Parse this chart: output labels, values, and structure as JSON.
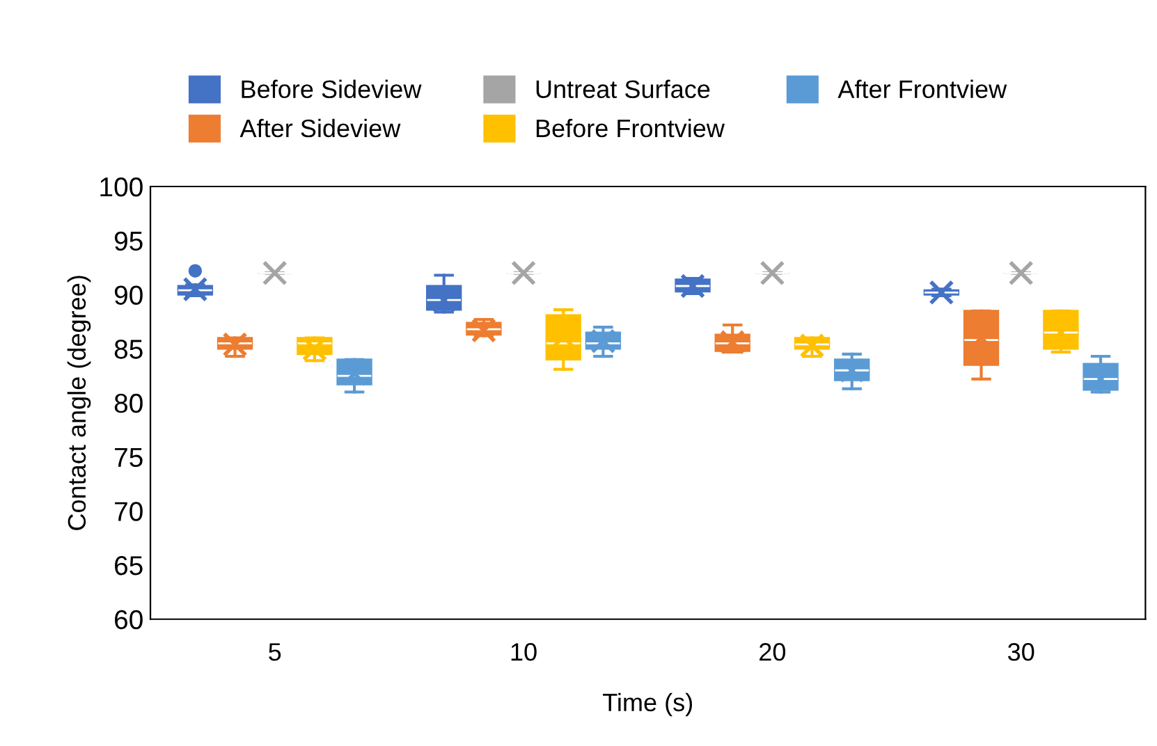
{
  "chart_data": {
    "type": "box",
    "xlabel": "Time (s)",
    "ylabel": "Contact angle (degree)",
    "categories": [
      "5",
      "10",
      "20",
      "30"
    ],
    "ylim": [
      60,
      100
    ],
    "yticks": [
      60,
      65,
      70,
      75,
      80,
      85,
      90,
      95,
      100
    ],
    "grid": false,
    "legend": "top",
    "marker": "cross",
    "series": [
      {
        "name": "Before Sideview",
        "color": "#4472c4",
        "boxes": [
          {
            "low": 89.9,
            "q1": 90.0,
            "median": 90.4,
            "q3": 90.8,
            "high": 90.9,
            "mean": 90.5,
            "outliers": [
              92.2
            ]
          },
          {
            "low": 88.4,
            "q1": 88.6,
            "median": 89.5,
            "q3": 90.8,
            "high": 91.8,
            "mean": 89.5
          },
          {
            "low": 90.1,
            "q1": 90.3,
            "median": 90.8,
            "q3": 91.4,
            "high": 91.5,
            "mean": 90.8
          },
          {
            "low": 89.9,
            "q1": 90.0,
            "median": 90.2,
            "q3": 90.4,
            "high": 90.5,
            "mean": 90.2
          }
        ]
      },
      {
        "name": "After Sideview",
        "color": "#ed7d31",
        "boxes": [
          {
            "low": 84.3,
            "q1": 85.0,
            "median": 85.5,
            "q3": 86.0,
            "high": 86.0,
            "mean": 85.4
          },
          {
            "low": 86.2,
            "q1": 86.3,
            "median": 86.8,
            "q3": 87.4,
            "high": 87.7,
            "mean": 86.7
          },
          {
            "low": 84.7,
            "q1": 84.8,
            "median": 85.5,
            "q3": 86.3,
            "high": 87.2,
            "mean": 85.6
          },
          {
            "low": 82.2,
            "q1": 83.5,
            "median": 85.8,
            "q3": 88.5,
            "high": 88.5,
            "mean": 86.0
          }
        ]
      },
      {
        "name": "Untreat Surface",
        "color": "#a5a5a5",
        "boxes": [
          {
            "low": 92,
            "q1": 92,
            "median": 92,
            "q3": 92,
            "high": 92,
            "mean": 92
          },
          {
            "low": 92,
            "q1": 92,
            "median": 92,
            "q3": 92,
            "high": 92,
            "mean": 92
          },
          {
            "low": 92,
            "q1": 92,
            "median": 92,
            "q3": 92,
            "high": 92,
            "mean": 92
          },
          {
            "low": 92,
            "q1": 92,
            "median": 92,
            "q3": 92,
            "high": 92,
            "mean": 92
          }
        ]
      },
      {
        "name": "Before Frontview",
        "color": "#ffc000",
        "boxes": [
          {
            "low": 83.9,
            "q1": 84.5,
            "median": 85.5,
            "q3": 86.0,
            "high": 86.0,
            "mean": 85.0
          },
          {
            "low": 83.1,
            "q1": 84.0,
            "median": 85.5,
            "q3": 88.1,
            "high": 88.6,
            "mean": 86.1
          },
          {
            "low": 84.3,
            "q1": 85.0,
            "median": 85.4,
            "q3": 86.0,
            "high": 86.0,
            "mean": 85.3
          },
          {
            "low": 84.7,
            "q1": 85.0,
            "median": 86.5,
            "q3": 88.5,
            "high": 88.5,
            "mean": 86.5
          }
        ]
      },
      {
        "name": "After Frontview",
        "color": "#5b9bd5",
        "boxes": [
          {
            "low": 81.0,
            "q1": 81.7,
            "median": 82.5,
            "q3": 84.0,
            "high": 84.0,
            "mean": 82.7
          },
          {
            "low": 84.3,
            "q1": 85.0,
            "median": 85.5,
            "q3": 86.5,
            "high": 87.0,
            "mean": 85.7
          },
          {
            "low": 81.3,
            "q1": 82.1,
            "median": 83.0,
            "q3": 84.0,
            "high": 84.5,
            "mean": 83.0
          },
          {
            "low": 81.0,
            "q1": 81.2,
            "median": 82.2,
            "q3": 83.6,
            "high": 84.3,
            "mean": 82.2
          }
        ]
      }
    ]
  }
}
